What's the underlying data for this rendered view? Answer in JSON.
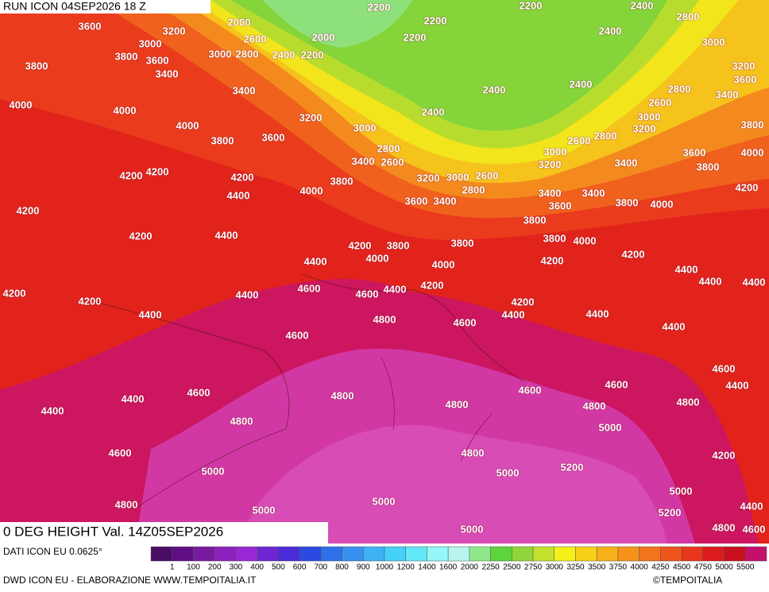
{
  "header": {
    "run": "RUN ICON 04SEP2026 18 Z"
  },
  "map": {
    "contour_labels": [
      2200,
      2200,
      2400,
      3600,
      3200,
      2000,
      2200,
      2800,
      3000,
      2600,
      2000,
      2200,
      2400,
      3000,
      3800,
      3600,
      3000,
      2800,
      2400,
      2200,
      3800,
      3400,
      3200,
      3600,
      3400,
      2400,
      2400,
      2800,
      3400,
      4000,
      4000,
      3200,
      2400,
      2600,
      3000,
      3000,
      4000,
      3200,
      3800,
      3600,
      3800,
      2600,
      2800,
      2800,
      3000,
      3600,
      4000,
      3400,
      2600,
      3200,
      3400,
      3800,
      4200,
      4200,
      4200,
      3800,
      3200,
      3000,
      2600,
      4400,
      4000,
      2800,
      3400,
      3400,
      4200,
      3600,
      3400,
      3600,
      3800,
      4000,
      4200,
      3800,
      4200,
      4400,
      3800,
      3800,
      4000,
      4200,
      3800,
      4200,
      4400,
      4000,
      4000,
      4200,
      4400,
      4400,
      4400,
      4600,
      4600,
      4400,
      4200,
      4200,
      4400,
      4200,
      4200,
      4400,
      4800,
      4600,
      4400,
      4400,
      4400,
      4600,
      4600,
      4600,
      4800,
      4600,
      4600,
      4400,
      4400,
      4800,
      4800,
      4800,
      4400,
      4800,
      5000,
      4600,
      4800,
      4200,
      5000,
      5000,
      5200,
      4800,
      5000,
      5000,
      5000,
      5200,
      4400,
      5000,
      4800,
      4600
    ]
  },
  "footer": {
    "field": "0 DEG HEIGHT Val. 14Z05SEP2026",
    "source": "DATI ICON EU 0.0625°",
    "credit": "DWD ICON EU - ELABORAZIONE WWW.TEMPOITALIA.IT",
    "copyright": "©TEMPOITALIA"
  },
  "legend": {
    "ticks": [
      1,
      100,
      200,
      300,
      400,
      500,
      600,
      700,
      800,
      900,
      1000,
      1200,
      1400,
      1600,
      2000,
      2250,
      2500,
      2750,
      3000,
      3250,
      3500,
      3750,
      4000,
      4250,
      4500,
      4750,
      5000,
      5500
    ],
    "colors": [
      "#4a0d66",
      "#600f82",
      "#781aa0",
      "#8c22bd",
      "#9a28d6",
      "#6e26d2",
      "#4a2bd8",
      "#2b4ae0",
      "#2f70e8",
      "#3a90f0",
      "#3fb2f5",
      "#45d0f8",
      "#62e8f8",
      "#95f7f7",
      "#b8f5f0",
      "#8ee88a",
      "#5ed43c",
      "#90d63a",
      "#c4e02e",
      "#f5ef1a",
      "#f7d01a",
      "#f7b01a",
      "#f5921b",
      "#f2741c",
      "#ee551c",
      "#e8361c",
      "#dc1c1c",
      "#c8101e",
      "#c4106a",
      "#c8227f",
      "#d03ba2",
      "#dd62c2",
      "#f07ad8"
    ]
  }
}
